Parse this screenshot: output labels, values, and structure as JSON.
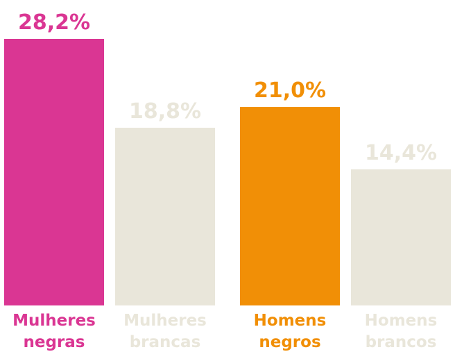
{
  "chart_data": {
    "type": "bar",
    "title": "",
    "xlabel": "",
    "ylabel": "",
    "ylim": [
      0,
      28.2
    ],
    "categories": [
      [
        "Mulheres",
        "negras"
      ],
      [
        "Mulheres",
        "brancas"
      ],
      [
        "Homens",
        "negros"
      ],
      [
        "Homens",
        "brancos"
      ]
    ],
    "values": [
      28.2,
      18.8,
      21.0,
      14.4
    ],
    "value_labels": [
      "28,2%",
      "18,8%",
      "21,0%",
      "14,4%"
    ],
    "colors": [
      "#da3693",
      "#e9e6da",
      "#f18f06",
      "#e9e6da"
    ],
    "grid": false,
    "legend": "none"
  }
}
